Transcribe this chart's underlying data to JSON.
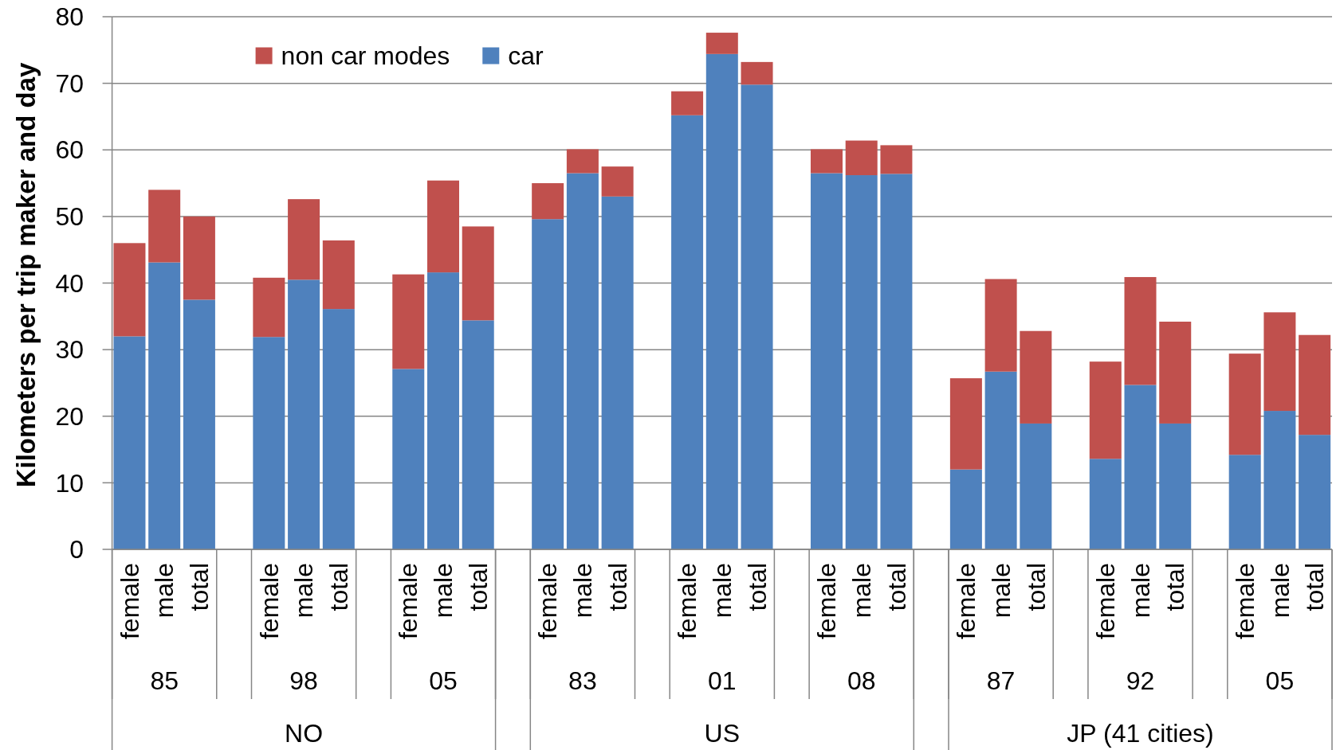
{
  "chart_data": {
    "type": "bar",
    "stacked": true,
    "ylabel": "Kilometers per trip maker and day",
    "categories": [
      "female",
      "male",
      "total",
      null,
      "female",
      "male",
      "total",
      null,
      "female",
      "male",
      "total",
      null,
      "female",
      "male",
      "total",
      null,
      "female",
      "male",
      "total",
      null,
      "female",
      "male",
      "total",
      null,
      "female",
      "male",
      "total",
      null,
      "female",
      "male",
      "total",
      null,
      "female",
      "male",
      "total"
    ],
    "series": [
      {
        "name": "car",
        "color": "#4f81bd",
        "values": [
          32.0,
          43.1,
          37.5,
          null,
          31.9,
          40.5,
          36.1,
          null,
          27.1,
          41.6,
          34.4,
          null,
          49.6,
          56.5,
          53.0,
          null,
          65.2,
          74.4,
          69.8,
          null,
          56.5,
          56.2,
          56.4,
          null,
          12.0,
          26.7,
          18.9,
          null,
          13.6,
          24.7,
          18.9,
          null,
          14.2,
          20.8,
          17.2
        ]
      },
      {
        "name": "non car modes",
        "color": "#c0504d",
        "values": [
          14.0,
          10.9,
          12.5,
          null,
          8.9,
          12.1,
          10.3,
          null,
          14.2,
          13.8,
          14.1,
          null,
          5.4,
          3.6,
          4.5,
          null,
          3.6,
          3.2,
          3.4,
          null,
          3.6,
          5.2,
          4.3,
          null,
          13.7,
          13.9,
          13.9,
          null,
          14.6,
          16.2,
          15.3,
          null,
          15.2,
          14.8,
          15.0
        ]
      }
    ],
    "ylim": [
      0,
      80
    ],
    "yticks": [
      0,
      10,
      20,
      30,
      40,
      50,
      60,
      70,
      80
    ],
    "grid": "y",
    "legend": "top left",
    "annotations": [
      "85",
      "98",
      "05",
      "83",
      "01",
      "08",
      "87",
      "92",
      "05",
      "NO",
      "US",
      "JP (41 cities)"
    ]
  }
}
